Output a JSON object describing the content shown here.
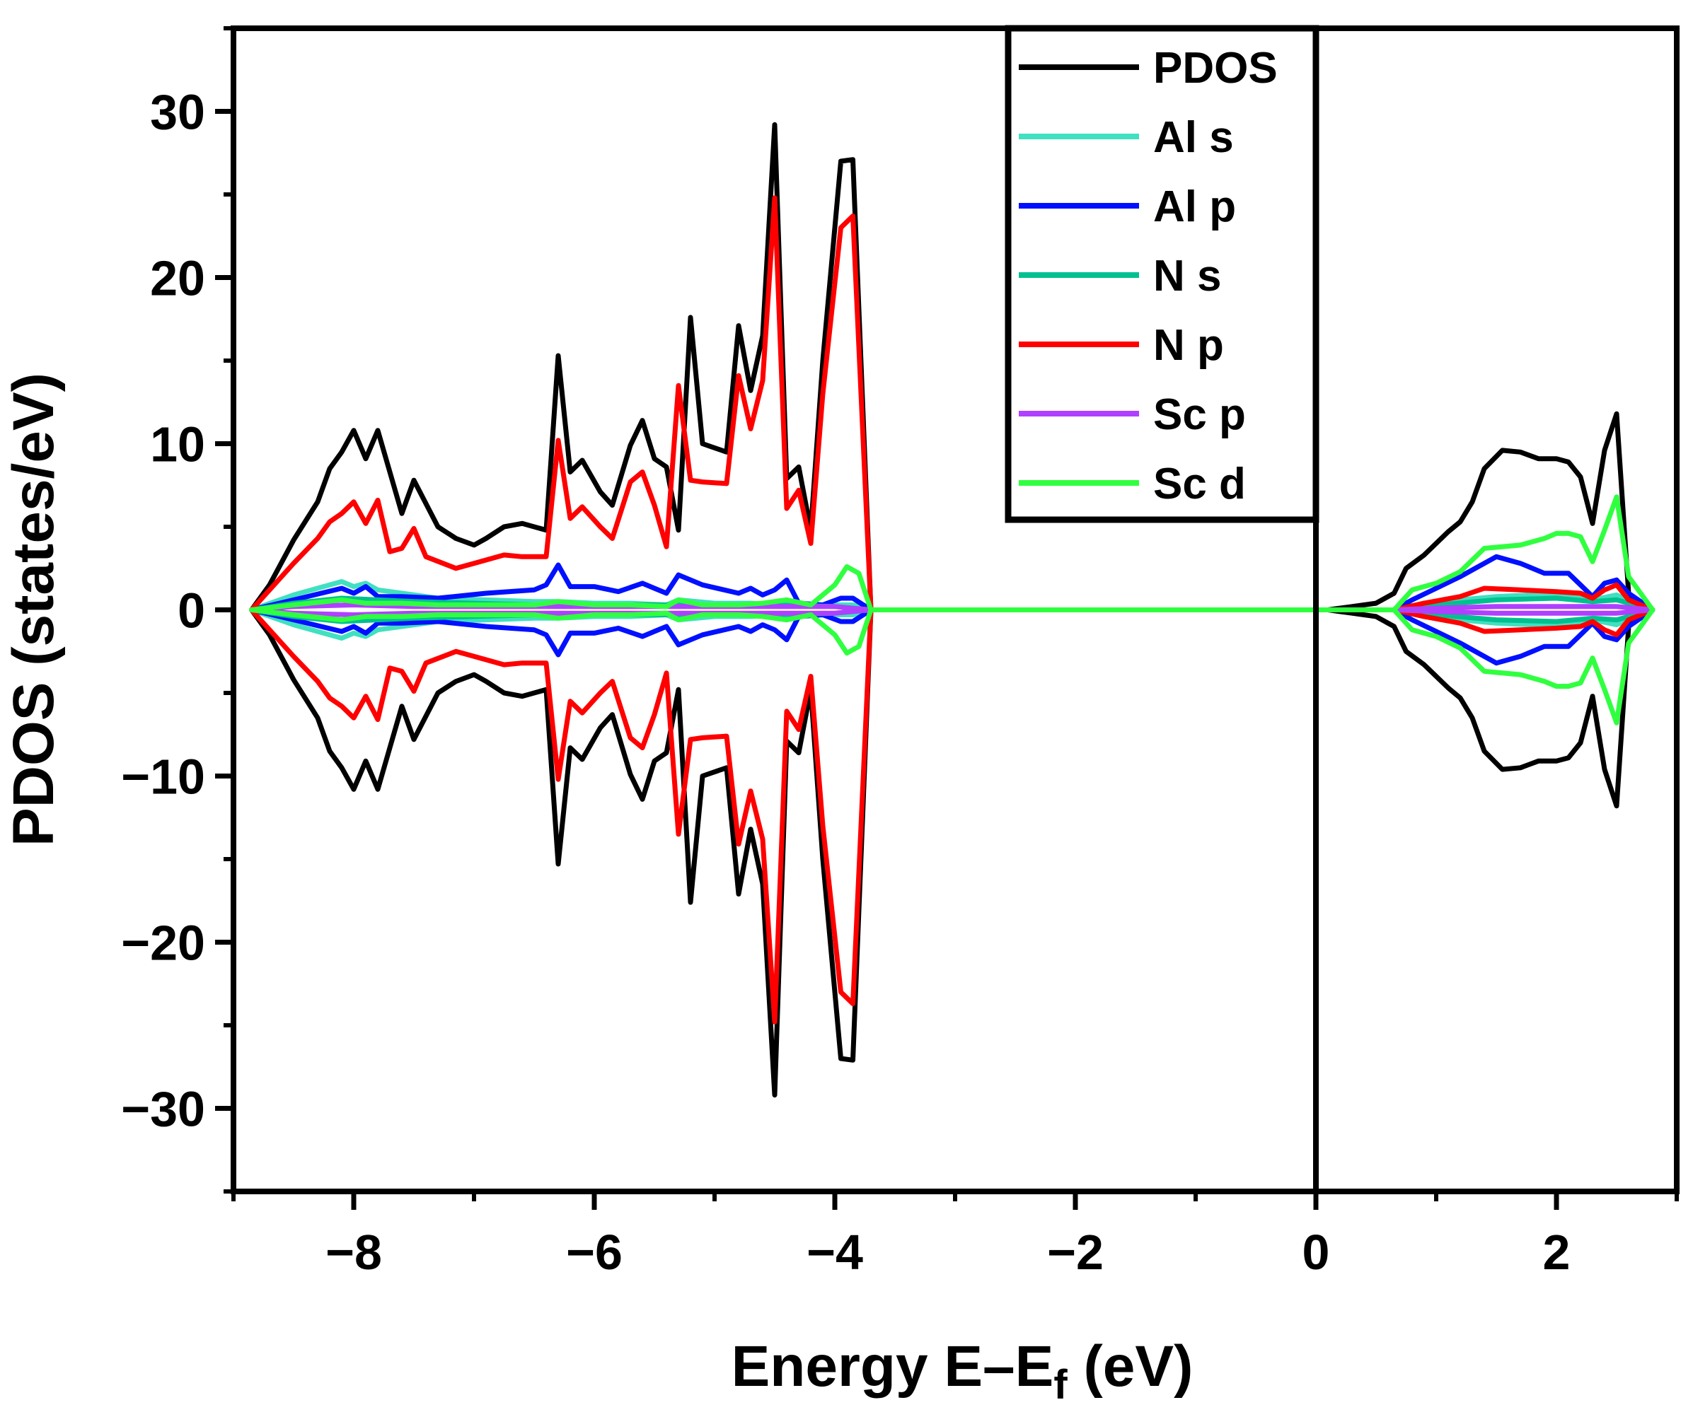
{
  "chart_data": {
    "type": "line",
    "title": "",
    "xlabel": "Energy E–E",
    "xlabel_sub": "f",
    "xlabel_suffix": " (eV)",
    "ylabel": "PDOS (states/eV)",
    "xlim": [
      -9.0,
      3.0
    ],
    "ylim": [
      -35,
      35
    ],
    "xticks": [
      -8,
      -6,
      -4,
      -2,
      0,
      2
    ],
    "xtick_labels": [
      "−8",
      "−6",
      "−4",
      "−2",
      "0",
      "2"
    ],
    "yticks": [
      -30,
      -20,
      -10,
      0,
      10,
      20,
      30
    ],
    "ytick_labels": [
      "−30",
      "−20",
      "−10",
      "0",
      "10",
      "20",
      "30"
    ],
    "fermi_level": 0,
    "spin_symmetric": true,
    "legend_position": "top-center",
    "series": [
      {
        "name": "PDOS",
        "color": "#000000",
        "x": [
          -8.85,
          -8.7,
          -8.5,
          -8.3,
          -8.2,
          -8.1,
          -8.0,
          -7.9,
          -7.8,
          -7.6,
          -7.5,
          -7.3,
          -7.15,
          -7.0,
          -6.9,
          -6.75,
          -6.6,
          -6.4,
          -6.3,
          -6.2,
          -6.1,
          -5.95,
          -5.85,
          -5.7,
          -5.6,
          -5.5,
          -5.4,
          -5.3,
          -5.2,
          -5.1,
          -4.9,
          -4.8,
          -4.7,
          -4.6,
          -4.5,
          -4.4,
          -4.3,
          -4.2,
          -4.1,
          -3.95,
          -3.85,
          -3.7,
          0.1,
          0.2,
          0.3,
          0.5,
          0.65,
          0.75,
          0.9,
          1.1,
          1.2,
          1.3,
          1.4,
          1.55,
          1.7,
          1.85,
          2.0,
          2.1,
          2.2,
          2.3,
          2.4,
          2.5,
          2.6,
          2.7,
          2.8
        ],
        "y": [
          0,
          1.5,
          4.2,
          6.5,
          8.5,
          9.5,
          10.8,
          9.1,
          10.8,
          5.8,
          7.8,
          5.0,
          4.3,
          3.9,
          4.3,
          5.0,
          5.2,
          4.8,
          15.3,
          8.3,
          9.0,
          7.1,
          6.3,
          9.9,
          11.4,
          9.1,
          8.6,
          4.8,
          17.6,
          10.0,
          9.5,
          17.1,
          13.2,
          16.5,
          29.2,
          7.9,
          8.6,
          4.8,
          15.0,
          27.0,
          27.1,
          0,
          0,
          0.1,
          0.2,
          0.4,
          1.0,
          2.5,
          3.3,
          4.7,
          5.3,
          6.5,
          8.5,
          9.6,
          9.5,
          9.1,
          9.1,
          8.9,
          8.0,
          5.2,
          9.6,
          11.8,
          1.0,
          0.3,
          0
        ]
      },
      {
        "name": "Al s",
        "color": "#40e0c0",
        "x": [
          -8.85,
          -8.5,
          -8.1,
          -8.0,
          -7.9,
          -7.8,
          -7.6,
          -7.3,
          -6.9,
          -6.5,
          -6.3,
          -6.0,
          -5.7,
          -5.4,
          -5.3,
          -5.0,
          -4.7,
          -4.5,
          -4.4,
          -4.2,
          -3.95,
          -3.85,
          -3.7,
          0.65,
          0.9,
          1.2,
          1.5,
          1.8,
          2.1,
          2.3,
          2.5,
          2.7,
          2.8
        ],
        "y": [
          0,
          0.9,
          1.7,
          1.4,
          1.6,
          1.2,
          1.0,
          0.7,
          0.6,
          0.5,
          0.5,
          0.4,
          0.4,
          0.3,
          0.6,
          0.4,
          0.4,
          0.3,
          0.5,
          0.3,
          0.3,
          0.3,
          0,
          0,
          0.4,
          0.6,
          0.8,
          0.9,
          0.8,
          0.6,
          0.9,
          0.2,
          0
        ]
      },
      {
        "name": "Al p",
        "color": "#0010ff",
        "x": [
          -8.85,
          -8.5,
          -8.1,
          -8.0,
          -7.9,
          -7.8,
          -7.6,
          -7.3,
          -6.9,
          -6.5,
          -6.4,
          -6.3,
          -6.2,
          -6.0,
          -5.8,
          -5.6,
          -5.5,
          -5.4,
          -5.3,
          -5.1,
          -4.8,
          -4.7,
          -4.6,
          -4.5,
          -4.4,
          -4.3,
          -4.1,
          -3.95,
          -3.85,
          -3.7,
          0.65,
          0.8,
          1.0,
          1.2,
          1.5,
          1.7,
          1.9,
          2.1,
          2.2,
          2.3,
          2.4,
          2.5,
          2.6,
          2.8
        ],
        "y": [
          0,
          0.6,
          1.3,
          1.0,
          1.4,
          0.8,
          0.8,
          0.7,
          1.0,
          1.2,
          1.5,
          2.7,
          1.4,
          1.4,
          1.1,
          1.6,
          1.3,
          1.0,
          2.1,
          1.5,
          1.0,
          1.3,
          0.9,
          1.2,
          1.8,
          0.4,
          0.3,
          0.7,
          0.7,
          0,
          0,
          0.6,
          1.3,
          2.0,
          3.2,
          2.8,
          2.2,
          2.2,
          1.5,
          0.8,
          1.6,
          1.8,
          1.0,
          0
        ]
      },
      {
        "name": "N s",
        "color": "#00c090",
        "x": [
          -8.85,
          -8.5,
          -8.1,
          -7.8,
          -7.5,
          -7.0,
          -6.5,
          -6.0,
          -5.5,
          -5.0,
          -4.5,
          -4.0,
          -3.7,
          0.65,
          1.0,
          1.5,
          2.0,
          2.3,
          2.5,
          2.8
        ],
        "y": [
          0,
          0.4,
          0.7,
          0.6,
          0.5,
          0.4,
          0.3,
          0.3,
          0.3,
          0.3,
          0.3,
          0.2,
          0,
          0,
          0.3,
          0.6,
          0.7,
          0.5,
          0.6,
          0
        ]
      },
      {
        "name": "N p",
        "color": "#ff0000",
        "x": [
          -8.85,
          -8.7,
          -8.5,
          -8.3,
          -8.2,
          -8.1,
          -8.0,
          -7.9,
          -7.8,
          -7.7,
          -7.6,
          -7.5,
          -7.4,
          -7.15,
          -7.0,
          -6.9,
          -6.75,
          -6.6,
          -6.4,
          -6.3,
          -6.2,
          -6.1,
          -5.95,
          -5.85,
          -5.7,
          -5.6,
          -5.5,
          -5.4,
          -5.3,
          -5.2,
          -5.1,
          -4.9,
          -4.8,
          -4.7,
          -4.6,
          -4.5,
          -4.4,
          -4.3,
          -4.2,
          -4.1,
          -3.95,
          -3.85,
          -3.7,
          0.65,
          0.9,
          1.2,
          1.4,
          1.7,
          2.0,
          2.2,
          2.3,
          2.4,
          2.5,
          2.6,
          2.8
        ],
        "y": [
          0,
          1.2,
          2.8,
          4.3,
          5.3,
          5.8,
          6.5,
          5.2,
          6.6,
          3.5,
          3.7,
          4.9,
          3.2,
          2.5,
          2.8,
          3.0,
          3.3,
          3.2,
          3.2,
          10.2,
          5.5,
          6.2,
          5.0,
          4.3,
          7.7,
          8.3,
          6.3,
          3.8,
          13.5,
          7.8,
          7.7,
          7.6,
          14.1,
          10.9,
          13.8,
          24.8,
          6.1,
          7.2,
          4.0,
          13.0,
          23.0,
          23.7,
          0,
          0,
          0.4,
          0.8,
          1.3,
          1.2,
          1.1,
          1.0,
          0.7,
          1.2,
          1.5,
          0.6,
          0
        ]
      },
      {
        "name": "Sc p",
        "color": "#b040ff",
        "x": [
          -8.85,
          -8.5,
          -8.0,
          -7.5,
          -7.0,
          -6.5,
          -6.0,
          -5.5,
          -5.0,
          -4.5,
          -4.0,
          -3.7,
          0.65,
          1.0,
          1.5,
          2.0,
          2.5,
          2.8
        ],
        "y": [
          0,
          0.2,
          0.3,
          0.2,
          0.2,
          0.2,
          0.2,
          0.2,
          0.2,
          0.2,
          0.2,
          0,
          0,
          0.1,
          0.2,
          0.2,
          0.2,
          0
        ]
      },
      {
        "name": "Sc d",
        "color": "#30ff40",
        "x": [
          -8.85,
          -8.5,
          -8.1,
          -7.9,
          -7.6,
          -7.3,
          -6.9,
          -6.5,
          -6.3,
          -6.0,
          -5.7,
          -5.4,
          -5.3,
          -5.1,
          -4.8,
          -4.6,
          -4.4,
          -4.2,
          -4.0,
          -3.9,
          -3.8,
          -3.7,
          0.65,
          0.8,
          1.0,
          1.2,
          1.4,
          1.7,
          1.9,
          2.0,
          2.1,
          2.2,
          2.3,
          2.4,
          2.5,
          2.6,
          2.8
        ],
        "y": [
          0,
          0.3,
          0.6,
          0.4,
          0.4,
          0.3,
          0.3,
          0.3,
          0.5,
          0.3,
          0.3,
          0.2,
          0.6,
          0.3,
          0.3,
          0.4,
          0.6,
          0.3,
          1.5,
          2.6,
          2.2,
          0,
          0,
          1.2,
          1.6,
          2.3,
          3.7,
          3.9,
          4.3,
          4.6,
          4.6,
          4.4,
          2.9,
          4.8,
          6.8,
          2.0,
          0
        ]
      }
    ]
  }
}
